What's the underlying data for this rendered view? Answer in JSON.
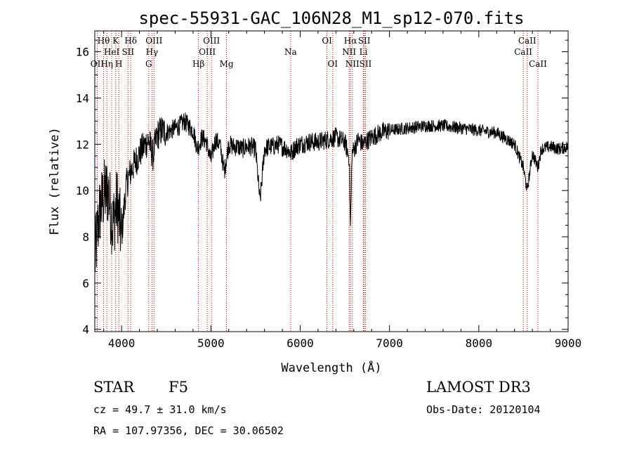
{
  "chart_data": {
    "type": "line",
    "title": "spec-55931-GAC_106N28_M1_sp12-070.fits",
    "xlabel": "Wavelength (Å)",
    "ylabel": "Flux (relative)",
    "xlim": [
      3700,
      9000
    ],
    "ylim": [
      3.9,
      16.9
    ],
    "x_ticks": [
      4000,
      5000,
      6000,
      7000,
      8000,
      9000
    ],
    "y_ticks": [
      4,
      6,
      8,
      10,
      12,
      14,
      16
    ],
    "grid": false,
    "series": [
      {
        "name": "flux",
        "x": [
          3700,
          3750,
          3800,
          3850,
          3900,
          3950,
          4000,
          4050,
          4100,
          4150,
          4200,
          4250,
          4300,
          4350,
          4400,
          4450,
          4500,
          4550,
          4600,
          4650,
          4700,
          4750,
          4800,
          4850,
          4900,
          4950,
          5000,
          5050,
          5100,
          5150,
          5200,
          5250,
          5300,
          5350,
          5400,
          5450,
          5500,
          5550,
          5600,
          5650,
          5700,
          5750,
          5800,
          5850,
          5900,
          5950,
          6000,
          6100,
          6200,
          6300,
          6400,
          6500,
          6550,
          6563,
          6580,
          6650,
          6700,
          6800,
          6900,
          7000,
          7200,
          7400,
          7600,
          7800,
          8000,
          8200,
          8400,
          8498,
          8542,
          8600,
          8662,
          8700,
          8800,
          8900,
          9000
        ],
        "y": [
          7.0,
          9.0,
          9.8,
          10.0,
          8.5,
          9.5,
          8.0,
          10.2,
          10.8,
          11.2,
          11.6,
          11.9,
          12.2,
          11.5,
          12.4,
          12.6,
          12.5,
          12.6,
          12.7,
          12.8,
          13.0,
          12.8,
          12.6,
          11.8,
          12.3,
          12.1,
          11.3,
          12.2,
          12.0,
          10.8,
          12.0,
          11.9,
          11.9,
          11.8,
          11.9,
          11.9,
          11.8,
          9.5,
          11.8,
          11.9,
          11.9,
          12.0,
          11.9,
          11.8,
          11.6,
          11.9,
          12.0,
          12.1,
          12.1,
          12.2,
          12.3,
          12.1,
          11.4,
          8.2,
          11.6,
          12.2,
          12.0,
          12.3,
          12.5,
          12.6,
          12.7,
          12.8,
          12.8,
          12.7,
          12.6,
          12.5,
          12.0,
          11.0,
          10.0,
          11.6,
          11.0,
          11.8,
          11.9,
          11.8,
          11.9
        ]
      }
    ],
    "lines": [
      {
        "name": "OII",
        "wl": 3727,
        "row": 3
      },
      {
        "name": "Hθ",
        "wl": 3798,
        "row": 1
      },
      {
        "name": "Hη",
        "wl": 3835,
        "row": 3
      },
      {
        "name": "HeI",
        "wl": 3889,
        "row": 2
      },
      {
        "name": "K",
        "wl": 3934,
        "row": 1
      },
      {
        "name": "H",
        "wl": 3969,
        "row": 3
      },
      {
        "name": "SII",
        "wl": 4072,
        "row": 2
      },
      {
        "name": "Hδ",
        "wl": 4102,
        "row": 1
      },
      {
        "name": "G",
        "wl": 4304,
        "row": 3
      },
      {
        "name": "Hγ",
        "wl": 4340,
        "row": 2
      },
      {
        "name": "OIII",
        "wl": 4363,
        "row": 1
      },
      {
        "name": "Hβ",
        "wl": 4861,
        "row": 3
      },
      {
        "name": "OIII",
        "wl": 4959,
        "row": 2
      },
      {
        "name": "OIII",
        "wl": 5007,
        "row": 1
      },
      {
        "name": "Mg",
        "wl": 5175,
        "row": 3
      },
      {
        "name": "Na",
        "wl": 5893,
        "row": 2
      },
      {
        "name": "OI",
        "wl": 6300,
        "row": 1
      },
      {
        "name": "OI",
        "wl": 6364,
        "row": 3
      },
      {
        "name": "NII",
        "wl": 6548,
        "row": 2
      },
      {
        "name": "NII",
        "wl": 6584,
        "row": 3
      },
      {
        "name": "Hα",
        "wl": 6563,
        "row": 1
      },
      {
        "name": "SII",
        "wl": 6717,
        "row": 1
      },
      {
        "name": "Li",
        "wl": 6708,
        "row": 2
      },
      {
        "name": "SII",
        "wl": 6731,
        "row": 3
      },
      {
        "name": "CaII",
        "wl": 8498,
        "row": 2
      },
      {
        "name": "CaII",
        "wl": 8542,
        "row": 1
      },
      {
        "name": "CaII",
        "wl": 8662,
        "row": 3
      }
    ]
  },
  "info": {
    "object_class": "STAR",
    "subclass": "F5",
    "cz": "cz = 49.7 ± 31.0 km/s",
    "coords": "RA = 107.97356, DEC =  30.06502",
    "survey": "LAMOST DR3",
    "obs_date": "Obs-Date: 20120104"
  },
  "colors": {
    "axis": "#000000",
    "spectrum": "#000000",
    "line_marker": "#cc0000"
  }
}
